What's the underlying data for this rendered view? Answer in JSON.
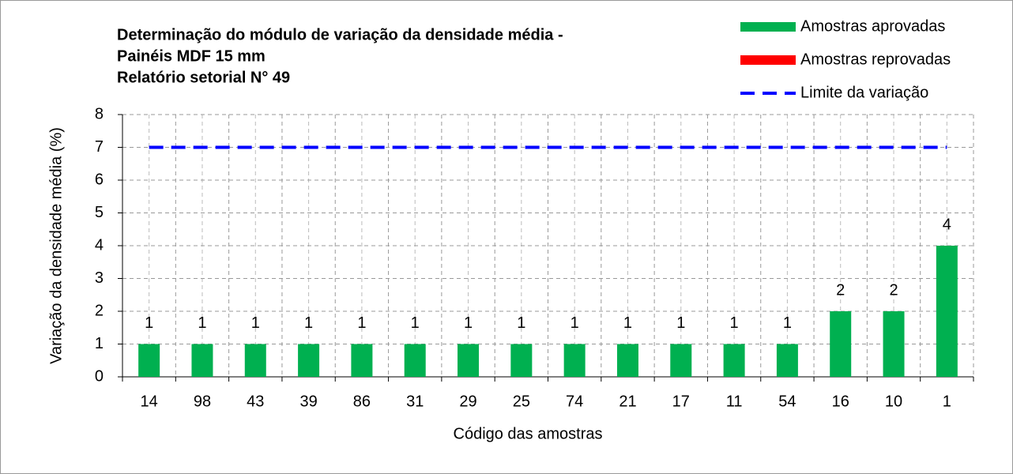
{
  "chart_data": {
    "type": "bar",
    "title": [
      "Determinação do módulo de variação da densidade média -",
      "Painéis MDF 15 mm",
      "Relatório setorial N° 49"
    ],
    "x_label": "Código das amostras",
    "y_label": "Variação da densidade média (%)",
    "categories": [
      "14",
      "98",
      "43",
      "39",
      "86",
      "31",
      "29",
      "25",
      "74",
      "21",
      "17",
      "11",
      "54",
      "16",
      "10",
      "1"
    ],
    "series": [
      {
        "name": "Amostras aprovadas",
        "color": "#00b050",
        "type": "bar",
        "values": [
          1,
          1,
          1,
          1,
          1,
          1,
          1,
          1,
          1,
          1,
          1,
          1,
          1,
          2,
          2,
          4
        ]
      },
      {
        "name": "Amostras reprovadas",
        "color": "#ff0000",
        "type": "bar",
        "values": [
          null,
          null,
          null,
          null,
          null,
          null,
          null,
          null,
          null,
          null,
          null,
          null,
          null,
          null,
          null,
          null
        ]
      },
      {
        "name": "Limite da variação",
        "color": "#0000ff",
        "type": "line",
        "values": [
          7,
          7,
          7,
          7,
          7,
          7,
          7,
          7,
          7,
          7,
          7,
          7,
          7,
          7,
          7,
          7
        ]
      }
    ],
    "ylim": [
      0,
      8
    ],
    "yticks": [
      0,
      1,
      2,
      3,
      4,
      5,
      6,
      7,
      8
    ],
    "grid": true,
    "legend": "top-right"
  }
}
